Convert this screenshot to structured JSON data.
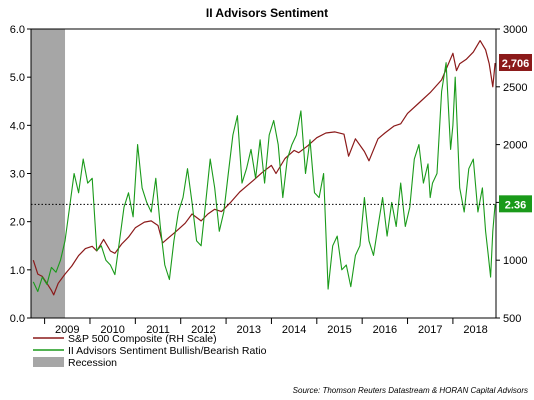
{
  "chart_data": {
    "type": "line",
    "title": "II Advisors Sentiment",
    "x_labels": [
      "2009",
      "2010",
      "2011",
      "2012",
      "2013",
      "2014",
      "2015",
      "2016",
      "2017",
      "2018"
    ],
    "xlim": [
      2008.7,
      2018.95
    ],
    "y_left": {
      "lim": [
        0,
        6
      ],
      "ticks": [
        "0.0",
        "1.0",
        "2.0",
        "3.0",
        "4.0",
        "5.0",
        "6.0"
      ]
    },
    "y_right": {
      "lim": [
        500,
        3000
      ],
      "ticks": [
        "500",
        "1000",
        "1500",
        "2000",
        "2500",
        "3000"
      ]
    },
    "reference_line": {
      "value": 2.36,
      "axis": "left",
      "style": "dotted"
    },
    "recession": {
      "start": 2008.7,
      "end": 2009.45,
      "label": "Recession",
      "color": "#a6a6a6"
    },
    "series": [
      {
        "name": "S&P 500 Composite (RH Scale)",
        "axis": "right",
        "color": "#8b1a1a",
        "last_label": "2,706",
        "x": [
          2008.75,
          2008.85,
          2008.95,
          2009.05,
          2009.15,
          2009.2,
          2009.3,
          2009.45,
          2009.6,
          2009.75,
          2009.9,
          2010.05,
          2010.15,
          2010.3,
          2010.45,
          2010.55,
          2010.7,
          2010.85,
          2011.0,
          2011.2,
          2011.35,
          2011.5,
          2011.6,
          2011.75,
          2011.9,
          2012.1,
          2012.25,
          2012.45,
          2012.6,
          2012.75,
          2012.9,
          2013.1,
          2013.3,
          2013.45,
          2013.6,
          2013.8,
          2014.0,
          2014.1,
          2014.3,
          2014.5,
          2014.6,
          2014.8,
          2015.0,
          2015.2,
          2015.4,
          2015.6,
          2015.7,
          2015.85,
          2016.05,
          2016.15,
          2016.35,
          2016.5,
          2016.7,
          2016.85,
          2017.0,
          2017.25,
          2017.5,
          2017.75,
          2018.0,
          2018.08,
          2018.15,
          2018.3,
          2018.45,
          2018.6,
          2018.72,
          2018.8,
          2018.88,
          2018.93
        ],
        "values": [
          1000,
          880,
          860,
          800,
          740,
          700,
          800,
          880,
          950,
          1040,
          1100,
          1120,
          1080,
          1180,
          1080,
          1060,
          1140,
          1200,
          1280,
          1330,
          1340,
          1300,
          1150,
          1200,
          1250,
          1320,
          1400,
          1340,
          1400,
          1440,
          1420,
          1500,
          1590,
          1640,
          1690,
          1760,
          1820,
          1750,
          1880,
          1950,
          1930,
          1990,
          2060,
          2100,
          2110,
          2090,
          1900,
          2050,
          1940,
          1860,
          2050,
          2100,
          2160,
          2180,
          2270,
          2360,
          2450,
          2560,
          2790,
          2640,
          2700,
          2740,
          2800,
          2900,
          2820,
          2700,
          2500,
          2706
        ]
      },
      {
        "name": "II Advisors Sentiment Bullish/Bearish Ratio",
        "axis": "left",
        "color": "#1a9a1a",
        "last_label": "2.36",
        "x": [
          2008.75,
          2008.85,
          2008.95,
          2009.05,
          2009.15,
          2009.25,
          2009.35,
          2009.45,
          2009.55,
          2009.65,
          2009.75,
          2009.85,
          2009.95,
          2010.05,
          2010.15,
          2010.25,
          2010.35,
          2010.45,
          2010.55,
          2010.65,
          2010.75,
          2010.85,
          2010.95,
          2011.05,
          2011.15,
          2011.25,
          2011.35,
          2011.45,
          2011.55,
          2011.65,
          2011.75,
          2011.85,
          2011.95,
          2012.05,
          2012.15,
          2012.25,
          2012.35,
          2012.45,
          2012.55,
          2012.65,
          2012.75,
          2012.85,
          2012.95,
          2013.05,
          2013.15,
          2013.25,
          2013.35,
          2013.45,
          2013.55,
          2013.65,
          2013.75,
          2013.85,
          2013.95,
          2014.05,
          2014.15,
          2014.25,
          2014.35,
          2014.45,
          2014.55,
          2014.65,
          2014.75,
          2014.85,
          2014.95,
          2015.05,
          2015.15,
          2015.25,
          2015.35,
          2015.45,
          2015.55,
          2015.65,
          2015.75,
          2015.85,
          2015.95,
          2016.05,
          2016.15,
          2016.25,
          2016.35,
          2016.45,
          2016.55,
          2016.65,
          2016.75,
          2016.85,
          2016.95,
          2017.05,
          2017.15,
          2017.25,
          2017.35,
          2017.45,
          2017.5,
          2017.55,
          2017.65,
          2017.75,
          2017.85,
          2017.95,
          2018.0,
          2018.05,
          2018.15,
          2018.25,
          2018.35,
          2018.45,
          2018.55,
          2018.65,
          2018.72,
          2018.78,
          2018.83,
          2018.88,
          2018.93
        ],
        "values": [
          0.75,
          0.55,
          0.85,
          0.7,
          1.05,
          0.95,
          1.2,
          1.6,
          2.3,
          3.0,
          2.6,
          3.3,
          2.8,
          2.9,
          1.4,
          1.5,
          1.2,
          1.1,
          0.9,
          1.6,
          2.3,
          2.6,
          2.1,
          3.6,
          2.7,
          2.4,
          2.2,
          2.9,
          1.9,
          1.1,
          0.8,
          1.6,
          2.2,
          2.5,
          3.1,
          2.4,
          1.6,
          1.5,
          2.4,
          3.3,
          2.7,
          1.8,
          2.2,
          3.0,
          3.8,
          4.2,
          2.8,
          3.1,
          3.5,
          2.9,
          3.7,
          2.8,
          3.8,
          4.1,
          3.6,
          2.5,
          3.3,
          3.6,
          3.8,
          4.3,
          3.0,
          3.7,
          2.6,
          2.5,
          3.0,
          0.6,
          1.5,
          1.7,
          1.0,
          1.1,
          0.65,
          1.3,
          1.5,
          2.5,
          1.6,
          1.3,
          1.9,
          2.5,
          1.7,
          2.4,
          1.9,
          2.8,
          1.9,
          2.3,
          3.3,
          3.6,
          2.8,
          3.2,
          2.5,
          2.8,
          3.0,
          4.7,
          5.3,
          3.5,
          4.0,
          5.0,
          2.7,
          2.2,
          3.1,
          3.3,
          2.2,
          2.7,
          1.8,
          1.3,
          0.85,
          1.8,
          2.36
        ]
      }
    ],
    "legend": [
      {
        "label": "S&P 500 Composite (RH Scale)",
        "kind": "line",
        "color": "#8b1a1a"
      },
      {
        "label": "II Advisors Sentiment Bullish/Bearish Ratio",
        "kind": "line",
        "color": "#1a9a1a"
      },
      {
        "label": "Recession",
        "kind": "box",
        "color": "#a6a6a6"
      }
    ],
    "source": "Source: Thomson Reuters Datastream & HORAN Capital Advisors",
    "grid": false,
    "legend_position": "bottom-left"
  }
}
